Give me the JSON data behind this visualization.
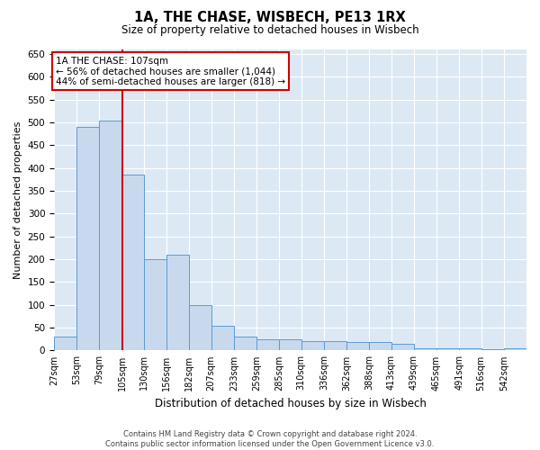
{
  "title": "1A, THE CHASE, WISBECH, PE13 1RX",
  "subtitle": "Size of property relative to detached houses in Wisbech",
  "xlabel": "Distribution of detached houses by size in Wisbech",
  "ylabel": "Number of detached properties",
  "bar_color": "#c8d9ee",
  "bar_edge_color": "#5b9bd5",
  "background_color": "#dce9f5",
  "annotation_box_color": "#cc0000",
  "annotation_text": "1A THE CHASE: 107sqm\n← 56% of detached houses are smaller (1,044)\n44% of semi-detached houses are larger (818) →",
  "vline_color": "#cc0000",
  "vline_x_index": 3,
  "categories": [
    "27sqm",
    "53sqm",
    "79sqm",
    "105sqm",
    "130sqm",
    "156sqm",
    "182sqm",
    "207sqm",
    "233sqm",
    "259sqm",
    "285sqm",
    "310sqm",
    "336sqm",
    "362sqm",
    "388sqm",
    "413sqm",
    "439sqm",
    "465sqm",
    "491sqm",
    "516sqm",
    "542sqm"
  ],
  "bin_edges": [
    27,
    53,
    79,
    105,
    130,
    156,
    182,
    207,
    233,
    259,
    285,
    310,
    336,
    362,
    388,
    413,
    439,
    465,
    491,
    516,
    542,
    568
  ],
  "values": [
    30,
    490,
    505,
    385,
    200,
    210,
    100,
    55,
    30,
    25,
    25,
    20,
    20,
    18,
    18,
    15,
    5,
    5,
    5,
    3,
    5
  ],
  "ylim": [
    0,
    660
  ],
  "yticks": [
    0,
    50,
    100,
    150,
    200,
    250,
    300,
    350,
    400,
    450,
    500,
    550,
    600,
    650
  ],
  "footnote": "Contains HM Land Registry data © Crown copyright and database right 2024.\nContains public sector information licensed under the Open Government Licence v3.0.",
  "figsize": [
    6.0,
    5.0
  ],
  "dpi": 100
}
